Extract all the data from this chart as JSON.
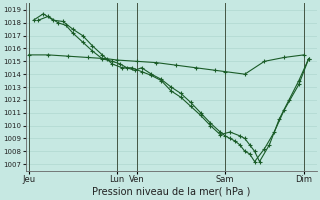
{
  "bg_color": "#c6e8e2",
  "grid_color": "#b0d8d0",
  "line_color": "#1a5c28",
  "title": "Pression niveau de la mer( hPa )",
  "ylim_min": 1006.5,
  "ylim_max": 1019.5,
  "yticks": [
    1007,
    1008,
    1009,
    1010,
    1011,
    1012,
    1013,
    1014,
    1015,
    1016,
    1017,
    1018,
    1019
  ],
  "day_labels": [
    "Jeu",
    "Lun",
    "Ven",
    "Sam",
    "Dim"
  ],
  "day_positions": [
    0,
    9,
    11,
    20,
    28
  ],
  "xlim_min": -0.3,
  "xlim_max": 29.3,
  "line1_x": [
    0,
    2,
    4,
    6,
    8,
    9,
    11,
    13,
    15,
    17,
    19,
    20,
    22,
    24,
    26,
    28
  ],
  "line1_y": [
    1015.5,
    1015.5,
    1015.4,
    1015.3,
    1015.2,
    1015.1,
    1015.0,
    1014.9,
    1014.7,
    1014.5,
    1014.3,
    1014.2,
    1014.0,
    1015.0,
    1015.3,
    1015.5
  ],
  "line2_x": [
    0.5,
    1.5,
    2.5,
    3.5,
    4.5,
    5.5,
    6.5,
    7.5,
    8.5,
    9.5,
    10.5,
    11.5,
    12.5,
    13.5,
    14.5,
    15.5,
    16.5,
    17.5,
    18.5,
    19.5,
    20.5,
    21.5,
    22.0,
    22.5,
    23.0,
    23.5,
    24.5,
    25.5,
    26.5,
    27.5,
    28.5
  ],
  "line2_y": [
    1018.2,
    1018.7,
    1018.2,
    1018.1,
    1017.5,
    1017.0,
    1016.2,
    1015.5,
    1014.8,
    1014.5,
    1014.5,
    1014.2,
    1013.9,
    1013.5,
    1012.7,
    1012.2,
    1011.5,
    1010.8,
    1010.0,
    1009.3,
    1009.5,
    1009.2,
    1009.0,
    1008.5,
    1008.0,
    1007.2,
    1008.5,
    1010.5,
    1012.0,
    1013.5,
    1015.2
  ],
  "line3_x": [
    1.0,
    2.0,
    3.0,
    3.8,
    4.5,
    5.5,
    6.5,
    7.5,
    8.5,
    9.3,
    10.0,
    10.8,
    11.5,
    12.5,
    13.5,
    14.5,
    15.5,
    16.5,
    17.5,
    18.5,
    19.5,
    20.0,
    20.5,
    21.0,
    21.5,
    22.0,
    22.5,
    23.0,
    24.0,
    25.0,
    26.0,
    27.5,
    28.5
  ],
  "line3_y": [
    1018.2,
    1018.5,
    1018.0,
    1017.8,
    1017.2,
    1016.5,
    1015.8,
    1015.2,
    1015.0,
    1014.8,
    1014.5,
    1014.3,
    1014.5,
    1014.0,
    1013.6,
    1013.0,
    1012.5,
    1011.8,
    1011.0,
    1010.2,
    1009.5,
    1009.2,
    1009.0,
    1008.8,
    1008.5,
    1008.0,
    1007.8,
    1007.2,
    1008.2,
    1009.5,
    1011.2,
    1013.2,
    1015.2
  ]
}
